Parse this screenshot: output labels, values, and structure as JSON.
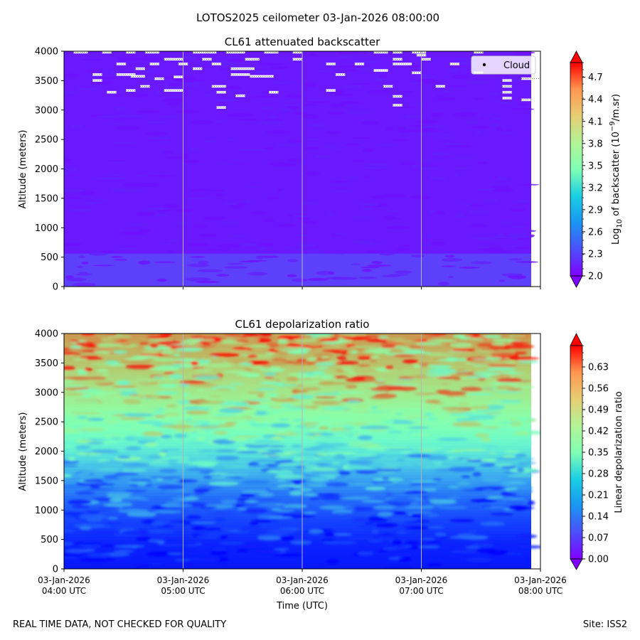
{
  "suptitle": "LOTOS2025 ceilometer 03-Jan-2026 08:00:00",
  "footer": {
    "left": "REAL TIME DATA, NOT CHECKED FOR QUALITY",
    "right": "Site: ISS2"
  },
  "colors": {
    "backscatter_bg": "#6a18fd",
    "backscatter_low": "#5d40f9",
    "depol_bg": "#7309fe",
    "gridline": "#b4b4b4"
  },
  "chart_data": [
    {
      "type": "heatmap",
      "title": "CL61 attenuated backscatter",
      "ylabel": "Altitude (meters)",
      "xlabel": "",
      "x_ticks": [
        "04:00",
        "05:00",
        "06:00",
        "07:00",
        "08:00"
      ],
      "x_range": [
        "03-Jan-2026 04:00 UTC",
        "03-Jan-2026 08:00 UTC"
      ],
      "ylim": [
        0,
        4000
      ],
      "y_ticks": [
        0,
        500,
        1000,
        1500,
        2000,
        2500,
        3000,
        3500,
        4000
      ],
      "grid": "vertical",
      "colormap": "rainbow",
      "colorbar": {
        "label_main": "Log",
        "label_sub": "10",
        "label_mid": " of backscatter (10",
        "label_sup": "−9",
        "label_end": "/m.sr)",
        "range": [
          2.0,
          4.9
        ],
        "ticks": [
          "2.0",
          "2.3",
          "2.6",
          "2.9",
          "3.2",
          "3.5",
          "3.8",
          "4.1",
          "4.4",
          "4.7"
        ],
        "extend": "both"
      },
      "legend": {
        "entries": [
          "Cloud"
        ],
        "placement": "top-right"
      },
      "cloud_points": [
        {
          "t": 0.02,
          "alt": 3980,
          "w": 0.03
        },
        {
          "t": 0.06,
          "alt": 3600,
          "w": 0.02
        },
        {
          "t": 0.06,
          "alt": 3500,
          "w": 0.02
        },
        {
          "t": 0.08,
          "alt": 3980,
          "w": 0.02
        },
        {
          "t": 0.09,
          "alt": 3300,
          "w": 0.02
        },
        {
          "t": 0.11,
          "alt": 3780,
          "w": 0.02
        },
        {
          "t": 0.11,
          "alt": 3600,
          "w": 0.04
        },
        {
          "t": 0.13,
          "alt": 3980,
          "w": 0.02
        },
        {
          "t": 0.13,
          "alt": 3330,
          "w": 0.02
        },
        {
          "t": 0.14,
          "alt": 3570,
          "w": 0.03
        },
        {
          "t": 0.15,
          "alt": 3700,
          "w": 0.02
        },
        {
          "t": 0.16,
          "alt": 3400,
          "w": 0.02
        },
        {
          "t": 0.17,
          "alt": 3980,
          "w": 0.03
        },
        {
          "t": 0.18,
          "alt": 3780,
          "w": 0.02
        },
        {
          "t": 0.19,
          "alt": 3530,
          "w": 0.02
        },
        {
          "t": 0.21,
          "alt": 3860,
          "w": 0.04
        },
        {
          "t": 0.21,
          "alt": 3330,
          "w": 0.04
        },
        {
          "t": 0.23,
          "alt": 3560,
          "w": 0.02
        },
        {
          "t": 0.24,
          "alt": 3780,
          "w": 0.02
        },
        {
          "t": 0.27,
          "alt": 3980,
          "w": 0.05
        },
        {
          "t": 0.27,
          "alt": 3700,
          "w": 0.02
        },
        {
          "t": 0.29,
          "alt": 3860,
          "w": 0.02
        },
        {
          "t": 0.31,
          "alt": 3780,
          "w": 0.02
        },
        {
          "t": 0.31,
          "alt": 3400,
          "w": 0.03
        },
        {
          "t": 0.32,
          "alt": 3300,
          "w": 0.02
        },
        {
          "t": 0.32,
          "alt": 3040,
          "w": 0.02
        },
        {
          "t": 0.34,
          "alt": 3980,
          "w": 0.04
        },
        {
          "t": 0.35,
          "alt": 3700,
          "w": 0.05
        },
        {
          "t": 0.35,
          "alt": 3600,
          "w": 0.04
        },
        {
          "t": 0.36,
          "alt": 3240,
          "w": 0.02
        },
        {
          "t": 0.38,
          "alt": 3860,
          "w": 0.03
        },
        {
          "t": 0.39,
          "alt": 3570,
          "w": 0.05
        },
        {
          "t": 0.42,
          "alt": 3980,
          "w": 0.03
        },
        {
          "t": 0.43,
          "alt": 3300,
          "w": 0.02
        },
        {
          "t": 0.48,
          "alt": 3980,
          "w": 0.02
        },
        {
          "t": 0.48,
          "alt": 3860,
          "w": 0.02
        },
        {
          "t": 0.55,
          "alt": 3780,
          "w": 0.02
        },
        {
          "t": 0.55,
          "alt": 3330,
          "w": 0.02
        },
        {
          "t": 0.57,
          "alt": 3600,
          "w": 0.02
        },
        {
          "t": 0.61,
          "alt": 3780,
          "w": 0.02
        },
        {
          "t": 0.65,
          "alt": 3980,
          "w": 0.03
        },
        {
          "t": 0.65,
          "alt": 3670,
          "w": 0.03
        },
        {
          "t": 0.67,
          "alt": 3400,
          "w": 0.02
        },
        {
          "t": 0.69,
          "alt": 3860,
          "w": 0.02
        },
        {
          "t": 0.69,
          "alt": 3980,
          "w": 0.02
        },
        {
          "t": 0.69,
          "alt": 3780,
          "w": 0.04
        },
        {
          "t": 0.69,
          "alt": 3230,
          "w": 0.02
        },
        {
          "t": 0.69,
          "alt": 3080,
          "w": 0.02
        },
        {
          "t": 0.73,
          "alt": 3980,
          "w": 0.03
        },
        {
          "t": 0.73,
          "alt": 3630,
          "w": 0.02
        },
        {
          "t": 0.74,
          "alt": 3930,
          "w": 0.02
        },
        {
          "t": 0.75,
          "alt": 3860,
          "w": 0.02
        },
        {
          "t": 0.78,
          "alt": 3400,
          "w": 0.02
        },
        {
          "t": 0.81,
          "alt": 3780,
          "w": 0.02
        },
        {
          "t": 0.86,
          "alt": 3980,
          "w": 0.02
        },
        {
          "t": 0.86,
          "alt": 3630,
          "w": 0.02
        },
        {
          "t": 0.92,
          "alt": 3500,
          "w": 0.02
        },
        {
          "t": 0.92,
          "alt": 3400,
          "w": 0.02
        },
        {
          "t": 0.92,
          "alt": 3300,
          "w": 0.02
        },
        {
          "t": 0.92,
          "alt": 3200,
          "w": 0.02
        },
        {
          "t": 0.96,
          "alt": 3530,
          "w": 0.04
        },
        {
          "t": 0.96,
          "alt": 3170,
          "w": 0.02
        }
      ]
    },
    {
      "type": "heatmap",
      "title": "CL61 depolarization ratio",
      "ylabel": "Altitude (meters)",
      "xlabel": "Time (UTC)",
      "x_ticks": [
        "04:00",
        "05:00",
        "06:00",
        "07:00",
        "08:00"
      ],
      "x_tick_labels": [
        [
          "03-Jan-2026",
          "04:00 UTC"
        ],
        [
          "03-Jan-2026",
          "05:00 UTC"
        ],
        [
          "03-Jan-2026",
          "06:00 UTC"
        ],
        [
          "03-Jan-2026",
          "07:00 UTC"
        ],
        [
          "03-Jan-2026",
          "08:00 UTC"
        ]
      ],
      "ylim": [
        0,
        4000
      ],
      "y_ticks": [
        0,
        500,
        1000,
        1500,
        2000,
        2500,
        3000,
        3500,
        4000
      ],
      "grid": "vertical",
      "colormap": "rainbow",
      "colorbar": {
        "label": "Linear depolarization ratio",
        "range": [
          0.0,
          0.7
        ],
        "ticks": [
          "0.00",
          "0.07",
          "0.14",
          "0.21",
          "0.28",
          "0.35",
          "0.42",
          "0.49",
          "0.56",
          "0.63"
        ],
        "extend": "both"
      },
      "profile": [
        {
          "alt": 0,
          "ratio": 0.02
        },
        {
          "alt": 400,
          "ratio": 0.03
        },
        {
          "alt": 800,
          "ratio": 0.06
        },
        {
          "alt": 1200,
          "ratio": 0.1
        },
        {
          "alt": 1600,
          "ratio": 0.17
        },
        {
          "alt": 2000,
          "ratio": 0.26
        },
        {
          "alt": 2400,
          "ratio": 0.35
        },
        {
          "alt": 2800,
          "ratio": 0.42
        },
        {
          "alt": 3200,
          "ratio": 0.47
        },
        {
          "alt": 3600,
          "ratio": 0.52
        },
        {
          "alt": 4000,
          "ratio": 0.56
        }
      ]
    }
  ]
}
